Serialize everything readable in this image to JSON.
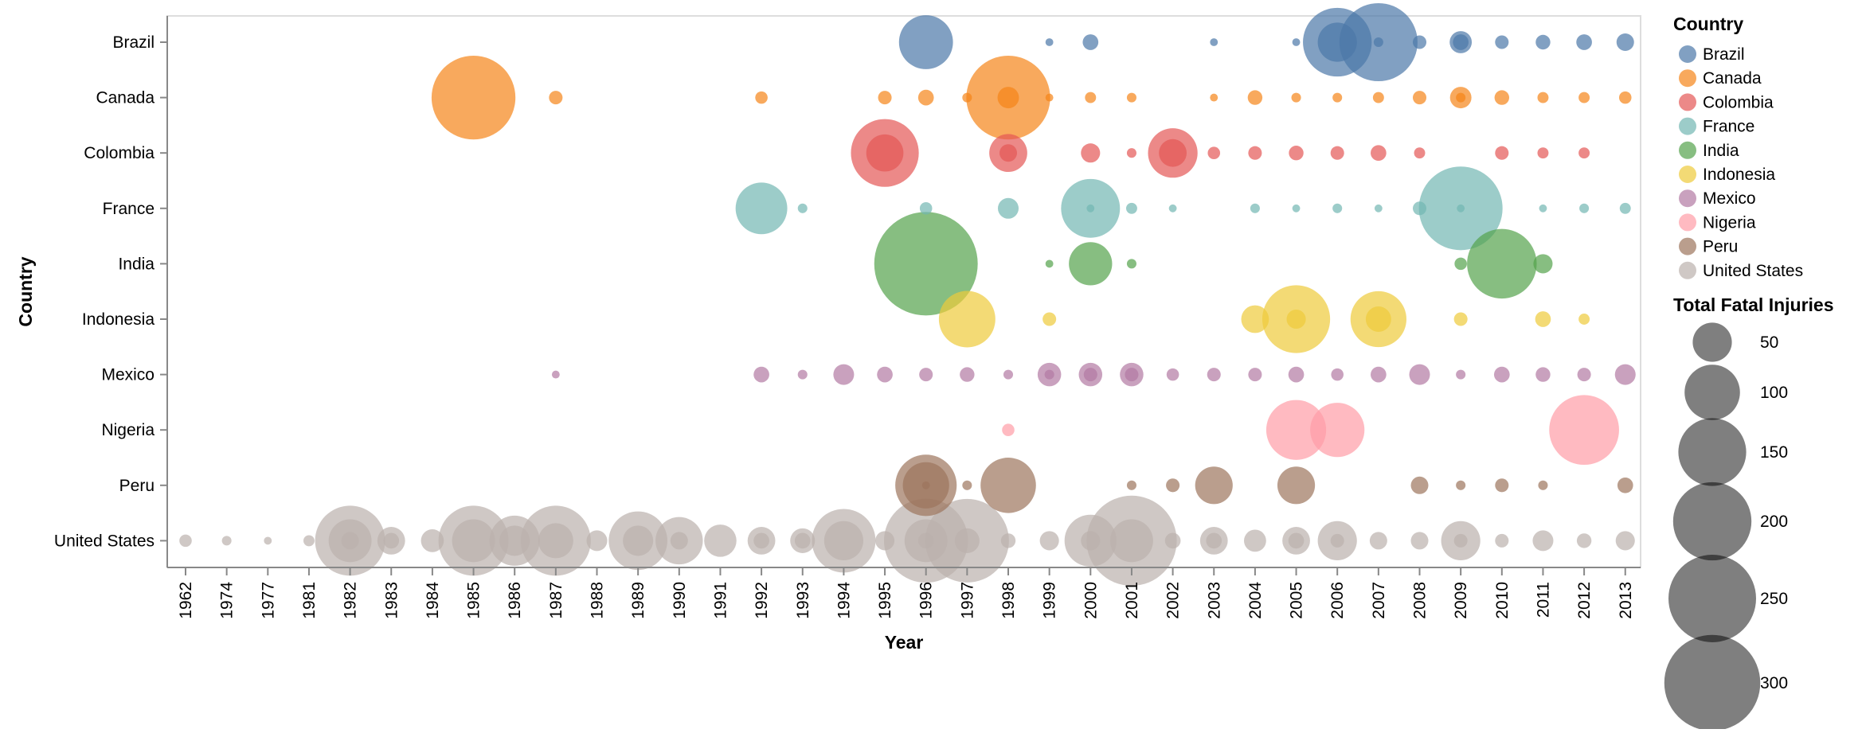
{
  "chart_data": {
    "type": "scatter",
    "xlabel": "Year",
    "ylabel": "Country",
    "years": [
      "1962",
      "1974",
      "1977",
      "1981",
      "1982",
      "1983",
      "1984",
      "1985",
      "1986",
      "1987",
      "1988",
      "1989",
      "1990",
      "1991",
      "1992",
      "1993",
      "1994",
      "1995",
      "1996",
      "1997",
      "1998",
      "1999",
      "2000",
      "2001",
      "2002",
      "2003",
      "2004",
      "2005",
      "2006",
      "2007",
      "2008",
      "2009",
      "2010",
      "2011",
      "2012",
      "2013"
    ],
    "countries": [
      "Brazil",
      "Canada",
      "Colombia",
      "France",
      "India",
      "Indonesia",
      "Mexico",
      "Nigeria",
      "Peru",
      "United States"
    ],
    "colors": {
      "Brazil": "#4c78a8",
      "Canada": "#f58518",
      "Colombia": "#e45756",
      "France": "#72b7b2",
      "India": "#54a24b",
      "Indonesia": "#eeca3b",
      "Mexico": "#b279a2",
      "Nigeria": "#ff9da6",
      "Peru": "#9d755d",
      "United States": "#bab0ac"
    },
    "color_legend": {
      "title": "Country",
      "items": [
        "Brazil",
        "Canada",
        "Colombia",
        "France",
        "India",
        "Indonesia",
        "Mexico",
        "Nigeria",
        "Peru",
        "United States"
      ]
    },
    "size_legend": {
      "title": "Total Fatal Injuries",
      "values": [
        50,
        100,
        150,
        200,
        250,
        300
      ]
    },
    "points": [
      {
        "country": "Brazil",
        "year": "1996",
        "injuries": 95
      },
      {
        "country": "Brazil",
        "year": "1999",
        "injuries": 2
      },
      {
        "country": "Brazil",
        "year": "2000",
        "injuries": 8
      },
      {
        "country": "Brazil",
        "year": "2003",
        "injuries": 2
      },
      {
        "country": "Brazil",
        "year": "2005",
        "injuries": 2
      },
      {
        "country": "Brazil",
        "year": "2006",
        "injuries": 154
      },
      {
        "country": "Brazil",
        "year": "2006",
        "injuries": 50
      },
      {
        "country": "Brazil",
        "year": "2007",
        "injuries": 199
      },
      {
        "country": "Brazil",
        "year": "2007",
        "injuries": 3
      },
      {
        "country": "Brazil",
        "year": "2008",
        "injuries": 6
      },
      {
        "country": "Brazil",
        "year": "2009",
        "injuries": 16
      },
      {
        "country": "Brazil",
        "year": "2009",
        "injuries": 8
      },
      {
        "country": "Brazil",
        "year": "2010",
        "injuries": 6
      },
      {
        "country": "Brazil",
        "year": "2011",
        "injuries": 7
      },
      {
        "country": "Brazil",
        "year": "2012",
        "injuries": 8
      },
      {
        "country": "Brazil",
        "year": "2013",
        "injuries": 10
      },
      {
        "country": "Canada",
        "year": "1985",
        "injuries": 229
      },
      {
        "country": "Canada",
        "year": "1987",
        "injuries": 6
      },
      {
        "country": "Canada",
        "year": "1992",
        "injuries": 5
      },
      {
        "country": "Canada",
        "year": "1995",
        "injuries": 6
      },
      {
        "country": "Canada",
        "year": "1996",
        "injuries": 8
      },
      {
        "country": "Canada",
        "year": "1997",
        "injuries": 3
      },
      {
        "country": "Canada",
        "year": "1998",
        "injuries": 229
      },
      {
        "country": "Canada",
        "year": "1998",
        "injuries": 15
      },
      {
        "country": "Canada",
        "year": "1999",
        "injuries": 2
      },
      {
        "country": "Canada",
        "year": "2000",
        "injuries": 4
      },
      {
        "country": "Canada",
        "year": "2001",
        "injuries": 3
      },
      {
        "country": "Canada",
        "year": "2003",
        "injuries": 2
      },
      {
        "country": "Canada",
        "year": "2004",
        "injuries": 7
      },
      {
        "country": "Canada",
        "year": "2005",
        "injuries": 3
      },
      {
        "country": "Canada",
        "year": "2006",
        "injuries": 3
      },
      {
        "country": "Canada",
        "year": "2007",
        "injuries": 4
      },
      {
        "country": "Canada",
        "year": "2008",
        "injuries": 6
      },
      {
        "country": "Canada",
        "year": "2009",
        "injuries": 15
      },
      {
        "country": "Canada",
        "year": "2009",
        "injuries": 3
      },
      {
        "country": "Canada",
        "year": "2010",
        "injuries": 7
      },
      {
        "country": "Canada",
        "year": "2011",
        "injuries": 4
      },
      {
        "country": "Canada",
        "year": "2012",
        "injuries": 4
      },
      {
        "country": "Canada",
        "year": "2013",
        "injuries": 5
      },
      {
        "country": "Colombia",
        "year": "1995",
        "injuries": 150
      },
      {
        "country": "Colombia",
        "year": "1995",
        "injuries": 45
      },
      {
        "country": "Colombia",
        "year": "1998",
        "injuries": 47
      },
      {
        "country": "Colombia",
        "year": "1998",
        "injuries": 10
      },
      {
        "country": "Colombia",
        "year": "2000",
        "injuries": 12
      },
      {
        "country": "Colombia",
        "year": "2001",
        "injuries": 3
      },
      {
        "country": "Colombia",
        "year": "2002",
        "injuries": 80
      },
      {
        "country": "Colombia",
        "year": "2002",
        "injuries": 25
      },
      {
        "country": "Colombia",
        "year": "2003",
        "injuries": 5
      },
      {
        "country": "Colombia",
        "year": "2004",
        "injuries": 6
      },
      {
        "country": "Colombia",
        "year": "2005",
        "injuries": 7
      },
      {
        "country": "Colombia",
        "year": "2006",
        "injuries": 6
      },
      {
        "country": "Colombia",
        "year": "2007",
        "injuries": 8
      },
      {
        "country": "Colombia",
        "year": "2008",
        "injuries": 4
      },
      {
        "country": "Colombia",
        "year": "2010",
        "injuries": 6
      },
      {
        "country": "Colombia",
        "year": "2011",
        "injuries": 4
      },
      {
        "country": "Colombia",
        "year": "2012",
        "injuries": 4
      },
      {
        "country": "France",
        "year": "1992",
        "injuries": 87
      },
      {
        "country": "France",
        "year": "1993",
        "injuries": 3
      },
      {
        "country": "France",
        "year": "1996",
        "injuries": 5
      },
      {
        "country": "France",
        "year": "1998",
        "injuries": 14
      },
      {
        "country": "France",
        "year": "2000",
        "injuries": 113
      },
      {
        "country": "France",
        "year": "2000",
        "injuries": 2
      },
      {
        "country": "France",
        "year": "2001",
        "injuries": 4
      },
      {
        "country": "France",
        "year": "2002",
        "injuries": 2
      },
      {
        "country": "France",
        "year": "2004",
        "injuries": 3
      },
      {
        "country": "France",
        "year": "2005",
        "injuries": 2
      },
      {
        "country": "France",
        "year": "2006",
        "injuries": 3
      },
      {
        "country": "France",
        "year": "2007",
        "injuries": 2
      },
      {
        "country": "France",
        "year": "2008",
        "injuries": 6
      },
      {
        "country": "France",
        "year": "2009",
        "injuries": 228
      },
      {
        "country": "France",
        "year": "2009",
        "injuries": 2
      },
      {
        "country": "France",
        "year": "2011",
        "injuries": 2
      },
      {
        "country": "France",
        "year": "2012",
        "injuries": 3
      },
      {
        "country": "France",
        "year": "2013",
        "injuries": 4
      },
      {
        "country": "India",
        "year": "1996",
        "injuries": 349
      },
      {
        "country": "India",
        "year": "1999",
        "injuries": 2
      },
      {
        "country": "India",
        "year": "2000",
        "injuries": 61
      },
      {
        "country": "India",
        "year": "2001",
        "injuries": 3
      },
      {
        "country": "India",
        "year": "2009",
        "injuries": 5
      },
      {
        "country": "India",
        "year": "2010",
        "injuries": 158
      },
      {
        "country": "India",
        "year": "2011",
        "injuries": 12
      },
      {
        "country": "Indonesia",
        "year": "1997",
        "injuries": 104
      },
      {
        "country": "Indonesia",
        "year": "1999",
        "injuries": 6
      },
      {
        "country": "Indonesia",
        "year": "2004",
        "injuries": 25
      },
      {
        "country": "Indonesia",
        "year": "2005",
        "injuries": 150
      },
      {
        "country": "Indonesia",
        "year": "2005",
        "injuries": 12
      },
      {
        "country": "Indonesia",
        "year": "2007",
        "injuries": 102
      },
      {
        "country": "Indonesia",
        "year": "2007",
        "injuries": 21
      },
      {
        "country": "Indonesia",
        "year": "2009",
        "injuries": 6
      },
      {
        "country": "Indonesia",
        "year": "2011",
        "injuries": 8
      },
      {
        "country": "Indonesia",
        "year": "2012",
        "injuries": 4
      },
      {
        "country": "Mexico",
        "year": "1987",
        "injuries": 2
      },
      {
        "country": "Mexico",
        "year": "1992",
        "injuries": 8
      },
      {
        "country": "Mexico",
        "year": "1993",
        "injuries": 3
      },
      {
        "country": "Mexico",
        "year": "1994",
        "injuries": 14
      },
      {
        "country": "Mexico",
        "year": "1995",
        "injuries": 8
      },
      {
        "country": "Mexico",
        "year": "1996",
        "injuries": 6
      },
      {
        "country": "Mexico",
        "year": "1997",
        "injuries": 7
      },
      {
        "country": "Mexico",
        "year": "1998",
        "injuries": 3
      },
      {
        "country": "Mexico",
        "year": "1999",
        "injuries": 18
      },
      {
        "country": "Mexico",
        "year": "1999",
        "injuries": 3
      },
      {
        "country": "Mexico",
        "year": "2000",
        "injuries": 18
      },
      {
        "country": "Mexico",
        "year": "2000",
        "injuries": 6
      },
      {
        "country": "Mexico",
        "year": "2001",
        "injuries": 18
      },
      {
        "country": "Mexico",
        "year": "2001",
        "injuries": 6
      },
      {
        "country": "Mexico",
        "year": "2002",
        "injuries": 5
      },
      {
        "country": "Mexico",
        "year": "2003",
        "injuries": 6
      },
      {
        "country": "Mexico",
        "year": "2004",
        "injuries": 6
      },
      {
        "country": "Mexico",
        "year": "2005",
        "injuries": 8
      },
      {
        "country": "Mexico",
        "year": "2006",
        "injuries": 5
      },
      {
        "country": "Mexico",
        "year": "2007",
        "injuries": 8
      },
      {
        "country": "Mexico",
        "year": "2008",
        "injuries": 14
      },
      {
        "country": "Mexico",
        "year": "2009",
        "injuries": 3
      },
      {
        "country": "Mexico",
        "year": "2010",
        "injuries": 8
      },
      {
        "country": "Mexico",
        "year": "2011",
        "injuries": 7
      },
      {
        "country": "Mexico",
        "year": "2012",
        "injuries": 6
      },
      {
        "country": "Mexico",
        "year": "2013",
        "injuries": 14
      },
      {
        "country": "Nigeria",
        "year": "1998",
        "injuries": 5
      },
      {
        "country": "Nigeria",
        "year": "2005",
        "injuries": 117
      },
      {
        "country": "Nigeria",
        "year": "2006",
        "injuries": 96
      },
      {
        "country": "Nigeria",
        "year": "2012",
        "injuries": 159
      },
      {
        "country": "Peru",
        "year": "1996",
        "injuries": 123
      },
      {
        "country": "Peru",
        "year": "1996",
        "injuries": 70
      },
      {
        "country": "Peru",
        "year": "1996",
        "injuries": 2
      },
      {
        "country": "Peru",
        "year": "1997",
        "injuries": 3
      },
      {
        "country": "Peru",
        "year": "1998",
        "injuries": 100
      },
      {
        "country": "Peru",
        "year": "2001",
        "injuries": 3
      },
      {
        "country": "Peru",
        "year": "2002",
        "injuries": 6
      },
      {
        "country": "Peru",
        "year": "2003",
        "injuries": 46
      },
      {
        "country": "Peru",
        "year": "2005",
        "injuries": 46
      },
      {
        "country": "Peru",
        "year": "2008",
        "injuries": 10
      },
      {
        "country": "Peru",
        "year": "2009",
        "injuries": 3
      },
      {
        "country": "Peru",
        "year": "2010",
        "injuries": 6
      },
      {
        "country": "Peru",
        "year": "2011",
        "injuries": 3
      },
      {
        "country": "Peru",
        "year": "2013",
        "injuries": 8
      },
      {
        "country": "United States",
        "year": "1962",
        "injuries": 5
      },
      {
        "country": "United States",
        "year": "1974",
        "injuries": 3
      },
      {
        "country": "United States",
        "year": "1977",
        "injuries": 2
      },
      {
        "country": "United States",
        "year": "1981",
        "injuries": 4
      },
      {
        "country": "United States",
        "year": "1982",
        "injuries": 160
      },
      {
        "country": "United States",
        "year": "1982",
        "injuries": 60
      },
      {
        "country": "United States",
        "year": "1982",
        "injuries": 10
      },
      {
        "country": "United States",
        "year": "1983",
        "injuries": 25
      },
      {
        "country": "United States",
        "year": "1983",
        "injuries": 8
      },
      {
        "country": "United States",
        "year": "1984",
        "injuries": 17
      },
      {
        "country": "United States",
        "year": "1985",
        "injuries": 160
      },
      {
        "country": "United States",
        "year": "1985",
        "injuries": 60
      },
      {
        "country": "United States",
        "year": "1986",
        "injuries": 82
      },
      {
        "country": "United States",
        "year": "1986",
        "injuries": 30
      },
      {
        "country": "United States",
        "year": "1987",
        "injuries": 160
      },
      {
        "country": "United States",
        "year": "1987",
        "injuries": 40
      },
      {
        "country": "United States",
        "year": "1988",
        "injuries": 14
      },
      {
        "country": "United States",
        "year": "1989",
        "injuries": 112
      },
      {
        "country": "United States",
        "year": "1989",
        "injuries": 30
      },
      {
        "country": "United States",
        "year": "1990",
        "injuries": 73
      },
      {
        "country": "United States",
        "year": "1990",
        "injuries": 10
      },
      {
        "country": "United States",
        "year": "1991",
        "injuries": 34
      },
      {
        "country": "United States",
        "year": "1992",
        "injuries": 25
      },
      {
        "country": "United States",
        "year": "1992",
        "injuries": 8
      },
      {
        "country": "United States",
        "year": "1993",
        "injuries": 20
      },
      {
        "country": "United States",
        "year": "1993",
        "injuries": 8
      },
      {
        "country": "United States",
        "year": "1994",
        "injuries": 132
      },
      {
        "country": "United States",
        "year": "1994",
        "injuries": 50
      },
      {
        "country": "United States",
        "year": "1995",
        "injuries": 12
      },
      {
        "country": "United States",
        "year": "1996",
        "injuries": 230
      },
      {
        "country": "United States",
        "year": "1996",
        "injuries": 60
      },
      {
        "country": "United States",
        "year": "1996",
        "injuries": 8
      },
      {
        "country": "United States",
        "year": "1997",
        "injuries": 228
      },
      {
        "country": "United States",
        "year": "1997",
        "injuries": 20
      },
      {
        "country": "United States",
        "year": "1998",
        "injuries": 7
      },
      {
        "country": "United States",
        "year": "1999",
        "injuries": 12
      },
      {
        "country": "United States",
        "year": "2000",
        "injuries": 88
      },
      {
        "country": "United States",
        "year": "2000",
        "injuries": 12
      },
      {
        "country": "United States",
        "year": "2001",
        "injuries": 265
      },
      {
        "country": "United States",
        "year": "2001",
        "injuries": 60
      },
      {
        "country": "United States",
        "year": "2002",
        "injuries": 8
      },
      {
        "country": "United States",
        "year": "2003",
        "injuries": 25
      },
      {
        "country": "United States",
        "year": "2003",
        "injuries": 8
      },
      {
        "country": "United States",
        "year": "2004",
        "injuries": 16
      },
      {
        "country": "United States",
        "year": "2005",
        "injuries": 25
      },
      {
        "country": "United States",
        "year": "2005",
        "injuries": 8
      },
      {
        "country": "United States",
        "year": "2006",
        "injuries": 50
      },
      {
        "country": "United States",
        "year": "2006",
        "injuries": 6
      },
      {
        "country": "United States",
        "year": "2007",
        "injuries": 10
      },
      {
        "country": "United States",
        "year": "2008",
        "injuries": 10
      },
      {
        "country": "United States",
        "year": "2009",
        "injuries": 50
      },
      {
        "country": "United States",
        "year": "2009",
        "injuries": 6
      },
      {
        "country": "United States",
        "year": "2010",
        "injuries": 6
      },
      {
        "country": "United States",
        "year": "2011",
        "injuries": 14
      },
      {
        "country": "United States",
        "year": "2012",
        "injuries": 7
      },
      {
        "country": "United States",
        "year": "2013",
        "injuries": 12
      }
    ]
  }
}
